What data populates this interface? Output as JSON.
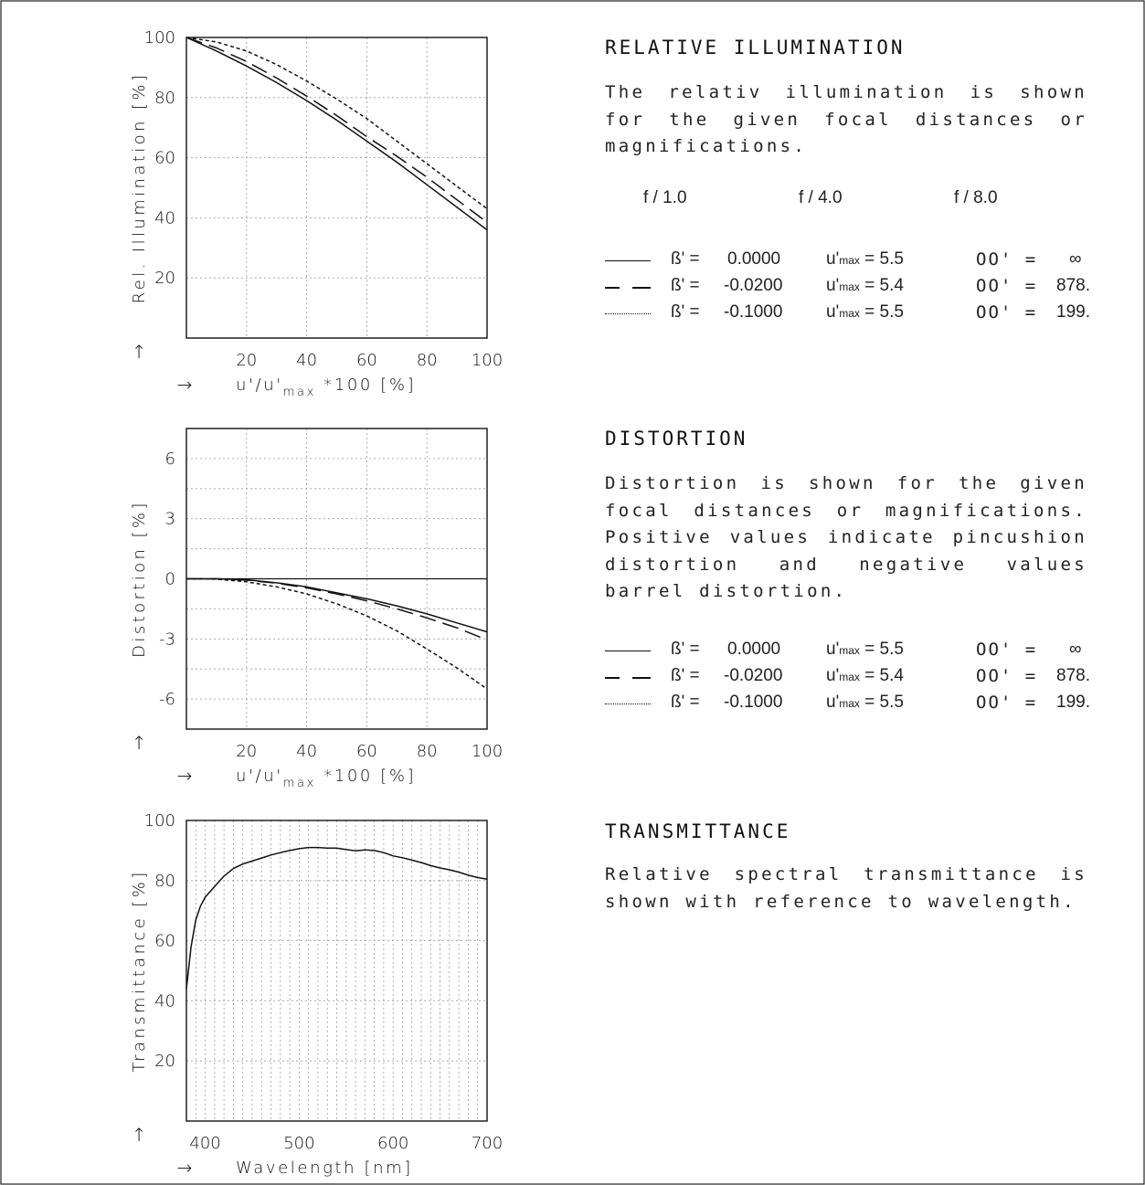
{
  "sections": {
    "illumination": {
      "heading": "RELATIVE ILLUMINATION",
      "text": "The relativ illumination is shown for the given focal distances or magnifications.",
      "fnumbers": [
        "f / 1.0",
        "f / 4.0",
        "f / 8.0"
      ]
    },
    "distortion": {
      "heading": "DISTORTION",
      "text": "Distortion is shown for the given focal distances or magnifications. Positive values indicate pincushion distortion and negative values barrel distortion."
    },
    "transmittance": {
      "heading": "TRANSMITTANCE",
      "text": "Relative spectral transmittance is shown with reference to wavelength."
    }
  },
  "legend": [
    {
      "style": "solid",
      "beta_label": "ß' =",
      "beta": "0.0000",
      "u_label": "u'",
      "u_sub": "max",
      "u_value": "= 5.5",
      "oo_label": "OO' =",
      "oo_value": "∞"
    },
    {
      "style": "dashed",
      "beta_label": "ß' =",
      "beta": "-0.0200",
      "u_label": "u'",
      "u_sub": "max",
      "u_value": "= 5.4",
      "oo_label": "OO' =",
      "oo_value": "878."
    },
    {
      "style": "dotted",
      "beta_label": "ß' =",
      "beta": "-0.1000",
      "u_label": "u'",
      "u_sub": "max",
      "u_value": "= 5.5",
      "oo_label": "OO' =",
      "oo_value": "199."
    }
  ],
  "arrow_up": "↑",
  "arrow_right": "→",
  "colors": {
    "line": "#111111",
    "grid": "#9a9a9a"
  },
  "chart_data": [
    {
      "type": "line",
      "ylabel": "Rel. Illumination [%]",
      "xlabel_main": "u'/u'",
      "xlabel_sub": "max",
      "xlabel_tail": "*100 [%]",
      "xlim": [
        0,
        100
      ],
      "ylim": [
        0,
        100
      ],
      "xticks": [
        20,
        40,
        60,
        80,
        100
      ],
      "yticks": [
        20,
        40,
        60,
        80,
        100
      ],
      "grid": true,
      "series": [
        {
          "style": "solid",
          "x": [
            0,
            10,
            20,
            30,
            40,
            50,
            60,
            70,
            80,
            90,
            100
          ],
          "y": [
            100,
            95.5,
            90.5,
            85,
            79,
            72.5,
            65.5,
            58.5,
            51,
            43.5,
            36
          ]
        },
        {
          "style": "dashed",
          "x": [
            0,
            10,
            20,
            30,
            40,
            50,
            60,
            70,
            80,
            90,
            100
          ],
          "y": [
            100,
            96.5,
            92,
            86.5,
            80.5,
            74,
            67,
            60.5,
            53.5,
            46,
            38.5
          ]
        },
        {
          "style": "dotted",
          "x": [
            0,
            10,
            20,
            30,
            40,
            50,
            60,
            70,
            80,
            90,
            100
          ],
          "y": [
            100,
            98.5,
            95.5,
            91,
            85.5,
            79.5,
            73,
            65.5,
            58,
            50.5,
            43
          ]
        }
      ]
    },
    {
      "type": "line",
      "ylabel": "Distortion [%]",
      "xlabel_main": "u'/u'",
      "xlabel_sub": "max",
      "xlabel_tail": "*100 [%]",
      "xlim": [
        0,
        100
      ],
      "ylim": [
        -7.5,
        7.5
      ],
      "xticks": [
        20,
        40,
        60,
        80,
        100
      ],
      "yticks": [
        6,
        3,
        0,
        -3,
        -6
      ],
      "grid": true,
      "series": [
        {
          "style": "solid",
          "x": [
            0,
            10,
            20,
            30,
            40,
            50,
            60,
            70,
            80,
            90,
            100
          ],
          "y": [
            0,
            0,
            -0.05,
            -0.2,
            -0.4,
            -0.7,
            -1.0,
            -1.35,
            -1.75,
            -2.2,
            -2.65
          ]
        },
        {
          "style": "dashed",
          "x": [
            0,
            10,
            20,
            30,
            40,
            50,
            60,
            70,
            80,
            90,
            100
          ],
          "y": [
            0,
            0,
            -0.07,
            -0.22,
            -0.45,
            -0.75,
            -1.1,
            -1.5,
            -1.95,
            -2.45,
            -3.05
          ]
        },
        {
          "style": "dotted",
          "x": [
            0,
            10,
            20,
            30,
            40,
            50,
            60,
            70,
            80,
            90,
            100
          ],
          "y": [
            0,
            -0.02,
            -0.15,
            -0.4,
            -0.75,
            -1.25,
            -1.85,
            -2.6,
            -3.5,
            -4.45,
            -5.5
          ]
        }
      ]
    },
    {
      "type": "line",
      "ylabel": "Transmittance [%]",
      "xlabel": "Wavelength [nm]",
      "xlim": [
        380,
        700
      ],
      "ylim": [
        0,
        100
      ],
      "xticks": [
        400,
        500,
        600,
        700
      ],
      "yticks": [
        20,
        40,
        60,
        80,
        100
      ],
      "grid": true,
      "series": [
        {
          "style": "solid",
          "x": [
            380,
            385,
            390,
            395,
            400,
            410,
            420,
            430,
            440,
            450,
            460,
            470,
            480,
            490,
            500,
            510,
            520,
            530,
            540,
            550,
            560,
            570,
            580,
            590,
            600,
            610,
            620,
            630,
            640,
            650,
            660,
            670,
            680,
            690,
            700
          ],
          "y": [
            44,
            58,
            67,
            71.5,
            74.5,
            78,
            81.5,
            84,
            85.5,
            86.5,
            87.5,
            88.5,
            89.3,
            90,
            90.6,
            91,
            91,
            90.8,
            90.8,
            90.3,
            89.9,
            90.2,
            90,
            89.3,
            88.2,
            87.6,
            86.8,
            86,
            85,
            84.2,
            83.6,
            82.8,
            81.8,
            81,
            80.5
          ]
        }
      ]
    }
  ]
}
